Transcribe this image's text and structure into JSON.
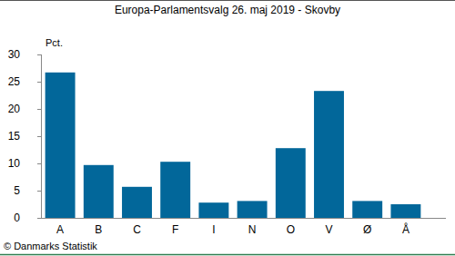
{
  "chart_data": {
    "type": "bar",
    "title": "Europa-Parlamentsvalg 26. maj 2019 - Skovby",
    "y_label": "Pct.",
    "source": "© Danmarks Statistik",
    "categories": [
      "A",
      "B",
      "C",
      "F",
      "I",
      "N",
      "O",
      "V",
      "Ø",
      "Å"
    ],
    "values": [
      26.7,
      9.7,
      5.7,
      10.3,
      2.8,
      3.1,
      12.8,
      23.3,
      3.1,
      2.5
    ],
    "color": "#02679a",
    "ylim": [
      0,
      30
    ],
    "yticks": [
      0,
      5,
      10,
      15,
      20,
      25,
      30
    ],
    "grid": false
  }
}
